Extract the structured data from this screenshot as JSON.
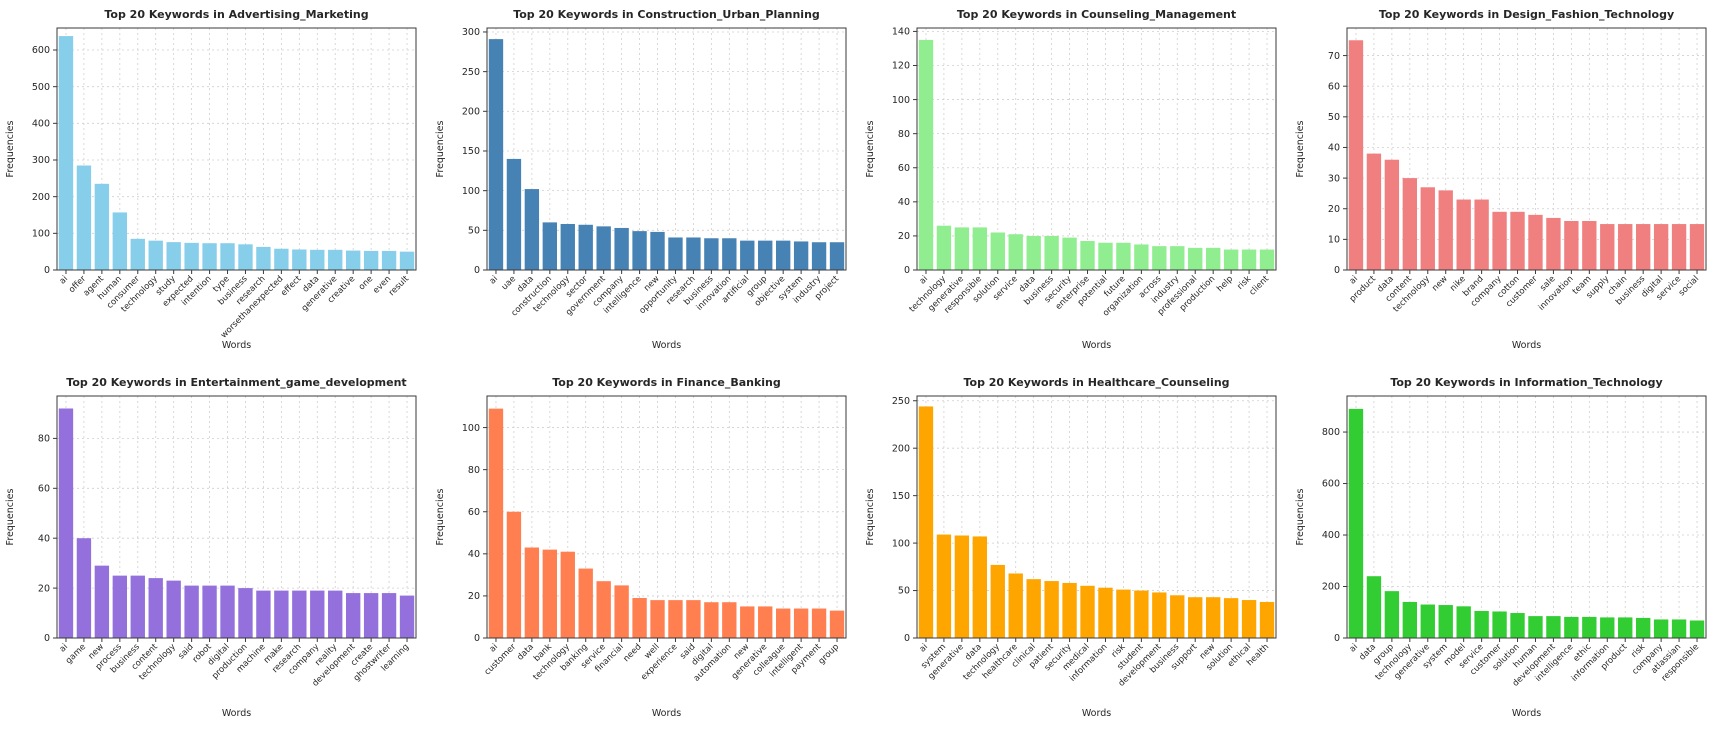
{
  "figure": {
    "layout": "2x4 grid of bar charts",
    "xlabel": "Words",
    "ylabel": "Frequencies"
  },
  "chart_data": [
    {
      "type": "bar",
      "title": "Top 20 Keywords in Advertising_Marketing",
      "xlabel": "Words",
      "ylabel": "Frequencies",
      "color": "#87CEEB",
      "ylim": [
        0,
        660
      ],
      "yticks": [
        0,
        100,
        200,
        300,
        400,
        500,
        600
      ],
      "grid": true,
      "categories": [
        "ai",
        "offer",
        "agent",
        "human",
        "consumer",
        "technology",
        "study",
        "expected",
        "intention",
        "type",
        "business",
        "research",
        "worsethanexpected",
        "effect",
        "data",
        "generative",
        "creative",
        "one",
        "even",
        "result"
      ],
      "values": [
        638,
        285,
        235,
        157,
        85,
        80,
        76,
        74,
        73,
        73,
        70,
        63,
        58,
        56,
        55,
        55,
        53,
        52,
        52,
        50
      ]
    },
    {
      "type": "bar",
      "title": "Top 20 Keywords in Construction_Urban_Planning",
      "xlabel": "Words",
      "ylabel": "Frequencies",
      "color": "#4682B4",
      "ylim": [
        0,
        305
      ],
      "yticks": [
        0,
        50,
        100,
        150,
        200,
        250,
        300
      ],
      "grid": true,
      "categories": [
        "ai",
        "uae",
        "data",
        "construction",
        "technology",
        "sector",
        "government",
        "company",
        "intelligence",
        "new",
        "opportunity",
        "research",
        "business",
        "innovation",
        "artificial",
        "group",
        "objective",
        "system",
        "industry",
        "project"
      ],
      "values": [
        291,
        140,
        102,
        60,
        58,
        57,
        55,
        53,
        49,
        48,
        41,
        41,
        40,
        40,
        37,
        37,
        37,
        36,
        35,
        35
      ]
    },
    {
      "type": "bar",
      "title": "Top 20 Keywords in Counseling_Management",
      "xlabel": "Words",
      "ylabel": "Frequencies",
      "color": "#90EE90",
      "ylim": [
        0,
        142
      ],
      "yticks": [
        0,
        20,
        40,
        60,
        80,
        100,
        120,
        140
      ],
      "grid": true,
      "categories": [
        "ai",
        "technology",
        "generative",
        "responsible",
        "solution",
        "service",
        "data",
        "business",
        "security",
        "enterprise",
        "potential",
        "future",
        "organization",
        "across",
        "industry",
        "professional",
        "production",
        "help",
        "risk",
        "client"
      ],
      "values": [
        135,
        26,
        25,
        25,
        22,
        21,
        20,
        20,
        19,
        17,
        16,
        16,
        15,
        14,
        14,
        13,
        13,
        12,
        12,
        12
      ]
    },
    {
      "type": "bar",
      "title": "Top 20 Keywords in Design_Fashion_Technology",
      "xlabel": "Words",
      "ylabel": "Frequencies",
      "color": "#F08080",
      "ylim": [
        0,
        79
      ],
      "yticks": [
        0,
        10,
        20,
        30,
        40,
        50,
        60,
        70
      ],
      "grid": true,
      "categories": [
        "ai",
        "product",
        "data",
        "content",
        "technology",
        "new",
        "nike",
        "brand",
        "company",
        "cotton",
        "customer",
        "sale",
        "innovation",
        "team",
        "supply",
        "chain",
        "business",
        "digital",
        "service",
        "social"
      ],
      "values": [
        75,
        38,
        36,
        30,
        27,
        26,
        23,
        23,
        19,
        19,
        18,
        17,
        16,
        16,
        15,
        15,
        15,
        15,
        15,
        15
      ]
    },
    {
      "type": "bar",
      "title": "Top 20 Keywords in Entertainment_game_development",
      "xlabel": "Words",
      "ylabel": "Frequencies",
      "color": "#9370DB",
      "ylim": [
        0,
        97
      ],
      "yticks": [
        0,
        20,
        40,
        60,
        80
      ],
      "grid": true,
      "categories": [
        "ai",
        "game",
        "new",
        "process",
        "business",
        "content",
        "technology",
        "said",
        "robot",
        "digital",
        "production",
        "machine",
        "make",
        "research",
        "company",
        "reality",
        "development",
        "create",
        "ghostwriter",
        "learning"
      ],
      "values": [
        92,
        40,
        29,
        25,
        25,
        24,
        23,
        21,
        21,
        21,
        20,
        19,
        19,
        19,
        19,
        19,
        18,
        18,
        18,
        17
      ]
    },
    {
      "type": "bar",
      "title": "Top 20 Keywords in Finance_Banking",
      "xlabel": "Words",
      "ylabel": "Frequencies",
      "color": "#FF7F50",
      "ylim": [
        0,
        115
      ],
      "yticks": [
        0,
        20,
        40,
        60,
        80,
        100
      ],
      "grid": true,
      "categories": [
        "ai",
        "customer",
        "data",
        "bank",
        "technology",
        "banking",
        "service",
        "financial",
        "need",
        "well",
        "experience",
        "said",
        "digital",
        "automation",
        "new",
        "generative",
        "colleague",
        "intelligent",
        "payment",
        "group"
      ],
      "values": [
        109,
        60,
        43,
        42,
        41,
        33,
        27,
        25,
        19,
        18,
        18,
        18,
        17,
        17,
        15,
        15,
        14,
        14,
        14,
        13
      ]
    },
    {
      "type": "bar",
      "title": "Top 20 Keywords in Healthcare_Counseling",
      "xlabel": "Words",
      "ylabel": "Frequencies",
      "color": "#FFA500",
      "ylim": [
        0,
        255
      ],
      "yticks": [
        0,
        50,
        100,
        150,
        200,
        250
      ],
      "grid": true,
      "categories": [
        "ai",
        "system",
        "generative",
        "data",
        "technology",
        "healthcare",
        "clinical",
        "patient",
        "security",
        "medical",
        "information",
        "risk",
        "student",
        "development",
        "business",
        "support",
        "new",
        "solution",
        "ethical",
        "health"
      ],
      "values": [
        244,
        109,
        108,
        107,
        77,
        68,
        62,
        60,
        58,
        55,
        53,
        51,
        50,
        48,
        45,
        43,
        43,
        42,
        40,
        38
      ]
    },
    {
      "type": "bar",
      "title": "Top 20 Keywords in Information_Technology",
      "xlabel": "Words",
      "ylabel": "Frequencies",
      "color": "#32CD32",
      "ylim": [
        0,
        940
      ],
      "yticks": [
        0,
        200,
        400,
        600,
        800
      ],
      "grid": true,
      "categories": [
        "ai",
        "data",
        "group",
        "technology",
        "generative",
        "system",
        "model",
        "service",
        "customer",
        "solution",
        "human",
        "development",
        "intelligence",
        "ethic",
        "information",
        "product",
        "risk",
        "company",
        "atlassian",
        "responsible"
      ],
      "values": [
        890,
        240,
        182,
        140,
        130,
        128,
        123,
        105,
        103,
        97,
        85,
        85,
        82,
        82,
        80,
        80,
        78,
        72,
        72,
        68
      ]
    }
  ]
}
